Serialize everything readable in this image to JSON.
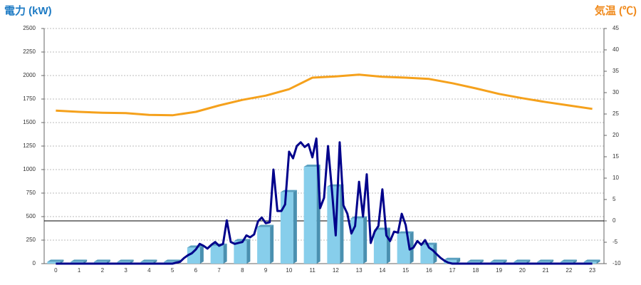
{
  "chart_data": {
    "type": "combo",
    "y_label": "電力 (kW)",
    "y2_label": "気温 (℃)",
    "categories": [
      "0",
      "1",
      "2",
      "3",
      "4",
      "5",
      "6",
      "7",
      "8",
      "9",
      "10",
      "11",
      "12",
      "13",
      "14",
      "15",
      "16",
      "17",
      "18",
      "19",
      "20",
      "21",
      "22",
      "23"
    ],
    "ylim": [
      0,
      2500
    ],
    "yticks": [
      0,
      250,
      500,
      750,
      1000,
      1250,
      1500,
      1750,
      2000,
      2250,
      2500
    ],
    "y2lim": [
      -10,
      45
    ],
    "y2ticks": [
      -10,
      -5,
      0,
      5,
      10,
      15,
      20,
      25,
      30,
      35,
      40,
      45
    ],
    "y2_refline": 0,
    "grid": true,
    "series": [
      {
        "type": "bar",
        "color": "#87ceeb",
        "values": [
          20,
          20,
          20,
          20,
          20,
          20,
          170,
          190,
          240,
          390,
          760,
          1030,
          820,
          480,
          360,
          320,
          200,
          40,
          20,
          20,
          20,
          20,
          20,
          20
        ]
      },
      {
        "type": "line",
        "color": "#00008b",
        "x": [
          0,
          5,
          5.33,
          5.5,
          5.67,
          5.83,
          6,
          6.17,
          6.33,
          6.5,
          6.67,
          6.83,
          7,
          7.17,
          7.33,
          7.5,
          7.67,
          7.83,
          8,
          8.17,
          8.33,
          8.5,
          8.67,
          8.83,
          9,
          9.17,
          9.33,
          9.5,
          9.67,
          9.83,
          10,
          10.17,
          10.33,
          10.5,
          10.67,
          10.83,
          11,
          11.17,
          11.33,
          11.5,
          11.67,
          11.83,
          12,
          12.17,
          12.33,
          12.5,
          12.67,
          12.83,
          13,
          13.17,
          13.33,
          13.5,
          13.67,
          13.83,
          14,
          14.17,
          14.33,
          14.5,
          14.67,
          14.83,
          15,
          15.17,
          15.33,
          15.5,
          15.67,
          15.83,
          16,
          16.17,
          16.33,
          16.5,
          16.67,
          16.83,
          17,
          23
        ],
        "values": [
          0,
          0,
          20,
          60,
          90,
          110,
          150,
          210,
          190,
          160,
          200,
          230,
          190,
          210,
          460,
          230,
          210,
          220,
          230,
          300,
          280,
          310,
          450,
          490,
          430,
          440,
          1000,
          560,
          560,
          630,
          1190,
          1120,
          1250,
          1290,
          1240,
          1270,
          1130,
          1330,
          590,
          700,
          1250,
          800,
          300,
          1290,
          620,
          530,
          320,
          400,
          870,
          500,
          950,
          220,
          340,
          400,
          790,
          300,
          240,
          340,
          330,
          530,
          410,
          150,
          170,
          240,
          200,
          250,
          170,
          140,
          100,
          60,
          30,
          10,
          0,
          0
        ]
      },
      {
        "type": "line",
        "axis": "y2",
        "color": "#f5a11c",
        "values": [
          25.8,
          25.5,
          25.3,
          25.2,
          24.8,
          24.7,
          25.5,
          27,
          28.3,
          29.3,
          30.8,
          33.5,
          33.8,
          34.2,
          33.7,
          33.5,
          33.2,
          32.2,
          31,
          29.7,
          28.7,
          27.8,
          27,
          26.2
        ]
      }
    ]
  }
}
